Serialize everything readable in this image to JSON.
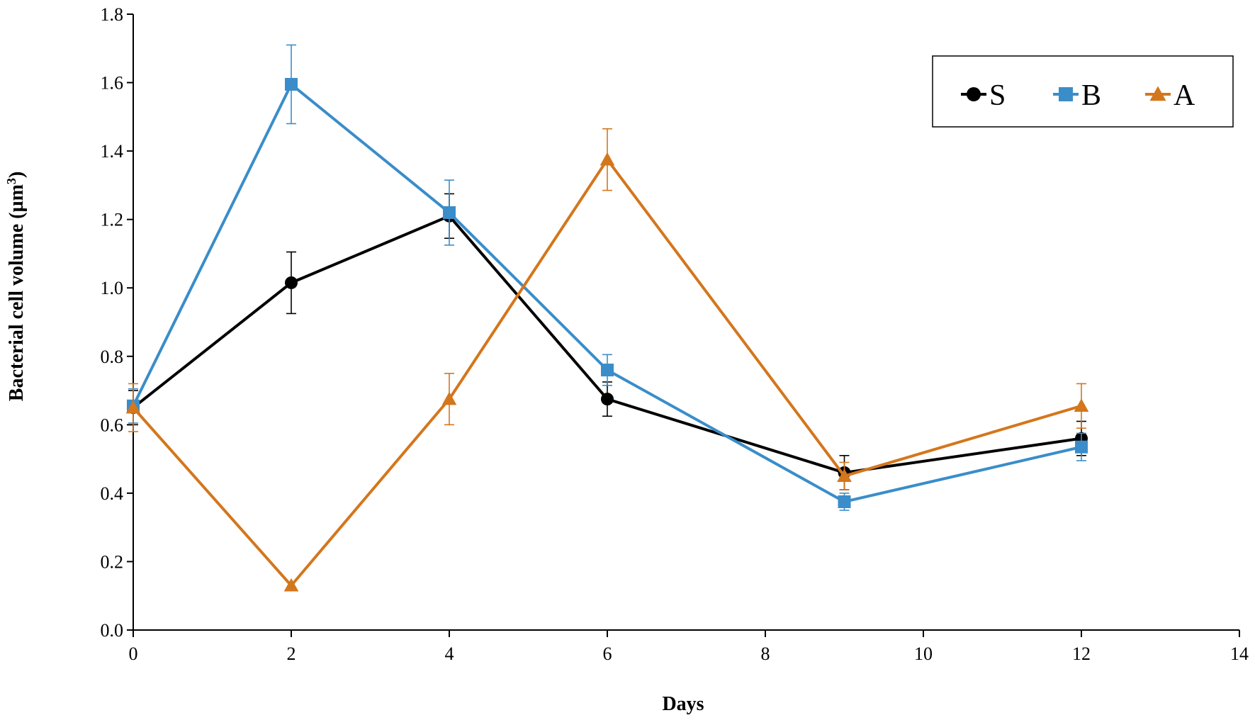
{
  "chart_data": {
    "type": "line",
    "title": "",
    "xlabel": "Days",
    "ylabel": "Bacterial cell volume (µm",
    "ylabel_superscript": "3",
    "ylabel_suffix": ")",
    "xlim": [
      0,
      14
    ],
    "ylim": [
      0,
      1.8
    ],
    "x_ticks": [
      0,
      2,
      4,
      6,
      8,
      10,
      12,
      14
    ],
    "y_ticks": [
      0.0,
      0.2,
      0.4,
      0.6,
      0.8,
      1.0,
      1.2,
      1.4,
      1.6,
      1.8
    ],
    "x_tick_labels": [
      "0",
      "2",
      "4",
      "6",
      "8",
      "10",
      "12",
      "14"
    ],
    "y_tick_labels": [
      "0.0",
      "0.2",
      "0.4",
      "0.6",
      "0.8",
      "1.0",
      "1.2",
      "1.4",
      "1.6",
      "1.8"
    ],
    "grid": false,
    "legend_position": "top-right",
    "series": [
      {
        "name": "S",
        "marker": "circle",
        "color": "#000000",
        "x": [
          0,
          2,
          4,
          6,
          9,
          12
        ],
        "values": [
          0.65,
          1.015,
          1.21,
          0.675,
          0.46,
          0.56
        ],
        "error": [
          0.05,
          0.09,
          0.065,
          0.05,
          0.05,
          0.05
        ]
      },
      {
        "name": "B",
        "marker": "square",
        "color": "#3A8DC9",
        "x": [
          0,
          2,
          4,
          6,
          9,
          12
        ],
        "values": [
          0.655,
          1.595,
          1.22,
          0.76,
          0.375,
          0.535
        ],
        "error": [
          0.05,
          0.115,
          0.095,
          0.045,
          0.025,
          0.04
        ]
      },
      {
        "name": "A",
        "marker": "triangle",
        "color": "#D4761C",
        "x": [
          0,
          2,
          4,
          6,
          9,
          12
        ],
        "values": [
          0.65,
          0.13,
          0.675,
          1.375,
          0.45,
          0.655
        ],
        "error": [
          0.07,
          0.0,
          0.075,
          0.09,
          0.04,
          0.065
        ]
      }
    ]
  }
}
